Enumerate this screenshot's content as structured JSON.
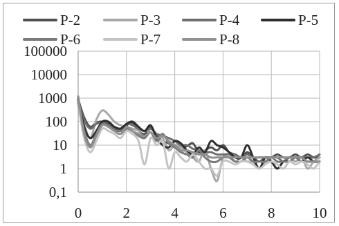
{
  "chart_data": {
    "type": "line",
    "title": "",
    "xlabel": "",
    "ylabel": "",
    "yscale": "log",
    "xlim": [
      0,
      10
    ],
    "ylim": [
      0.1,
      100000
    ],
    "grid": true,
    "legend_position": "top",
    "x_ticks": [
      "0",
      "2",
      "4",
      "6",
      "8",
      "10"
    ],
    "y_ticks": [
      "100000",
      "10000",
      "1000",
      "100",
      "10",
      "1",
      "0,1"
    ],
    "y_tick_values": [
      100000,
      10000,
      1000,
      100,
      10,
      1,
      0.1
    ],
    "x": [
      0,
      0.25,
      0.5,
      0.75,
      1,
      1.25,
      1.5,
      1.75,
      2,
      2.25,
      2.5,
      2.75,
      3,
      3.25,
      3.5,
      3.75,
      4,
      4.25,
      4.5,
      4.75,
      5,
      5.25,
      5.5,
      5.75,
      6,
      6.25,
      6.5,
      6.75,
      7,
      7.25,
      7.5,
      7.75,
      8,
      8.25,
      8.5,
      8.75,
      9,
      9.25,
      9.5,
      9.75,
      10
    ],
    "series": [
      {
        "name": "P-2",
        "color": "#4f4f4f",
        "values": [
          900,
          150,
          60,
          90,
          100,
          80,
          60,
          50,
          70,
          90,
          40,
          30,
          60,
          25,
          15,
          12,
          10,
          8,
          9,
          12,
          5,
          6,
          8,
          6,
          10,
          5,
          4,
          3,
          5,
          3,
          2,
          3,
          3,
          4,
          3,
          3,
          4,
          3,
          4,
          3,
          3
        ]
      },
      {
        "name": "P-3",
        "color": "#a8a8a8",
        "values": [
          700,
          80,
          20,
          120,
          300,
          200,
          100,
          70,
          60,
          50,
          40,
          20,
          50,
          30,
          20,
          6,
          10,
          8,
          5,
          3,
          2,
          6,
          1,
          0.3,
          3,
          4,
          2,
          3,
          2,
          2,
          1,
          2,
          2,
          1,
          2,
          3,
          2,
          3,
          1,
          2,
          3
        ]
      },
      {
        "name": "P-4",
        "color": "#6e6e6e",
        "values": [
          800,
          120,
          50,
          80,
          90,
          70,
          50,
          40,
          80,
          70,
          50,
          40,
          50,
          30,
          25,
          20,
          15,
          10,
          10,
          7,
          6,
          5,
          5,
          4,
          4,
          4,
          4,
          3,
          4,
          3,
          3,
          3,
          3,
          3,
          2,
          3,
          3,
          3,
          3,
          3,
          4
        ]
      },
      {
        "name": "P-5",
        "color": "#2e2e2e",
        "values": [
          1000,
          60,
          20,
          40,
          100,
          100,
          60,
          50,
          80,
          100,
          60,
          40,
          70,
          20,
          10,
          8,
          15,
          12,
          6,
          4,
          8,
          5,
          15,
          10,
          8,
          5,
          3,
          3,
          10,
          3,
          1,
          3,
          2,
          1,
          2,
          2,
          3,
          2,
          3,
          2,
          2
        ]
      },
      {
        "name": "P-6",
        "color": "#7a7a7a",
        "values": [
          600,
          40,
          10,
          30,
          80,
          60,
          40,
          30,
          50,
          40,
          25,
          20,
          35,
          15,
          30,
          12,
          8,
          5,
          4,
          3,
          6,
          3,
          2,
          2,
          3,
          3,
          2,
          2,
          3,
          2,
          2,
          2,
          3,
          2,
          2,
          2,
          3,
          2,
          2,
          2,
          2
        ]
      },
      {
        "name": "P-7",
        "color": "#c4c4c4",
        "values": [
          500,
          20,
          5,
          15,
          50,
          40,
          30,
          20,
          40,
          30,
          15,
          1.5,
          20,
          10,
          15,
          1,
          5,
          3,
          2,
          4,
          2,
          1,
          1,
          0.5,
          2,
          2,
          1.5,
          2,
          2,
          1.5,
          1,
          1.5,
          2,
          1.5,
          1,
          2,
          1.5,
          2,
          1.5,
          1,
          2
        ]
      },
      {
        "name": "P-8",
        "color": "#909090",
        "values": [
          1200,
          30,
          8,
          25,
          70,
          60,
          40,
          30,
          60,
          40,
          30,
          25,
          35,
          20,
          25,
          15,
          10,
          6,
          6,
          5,
          4,
          4,
          3,
          3,
          3,
          3,
          3,
          3,
          3,
          3,
          3,
          3,
          3,
          3,
          3,
          3,
          3,
          3,
          2,
          2,
          2
        ]
      }
    ]
  }
}
